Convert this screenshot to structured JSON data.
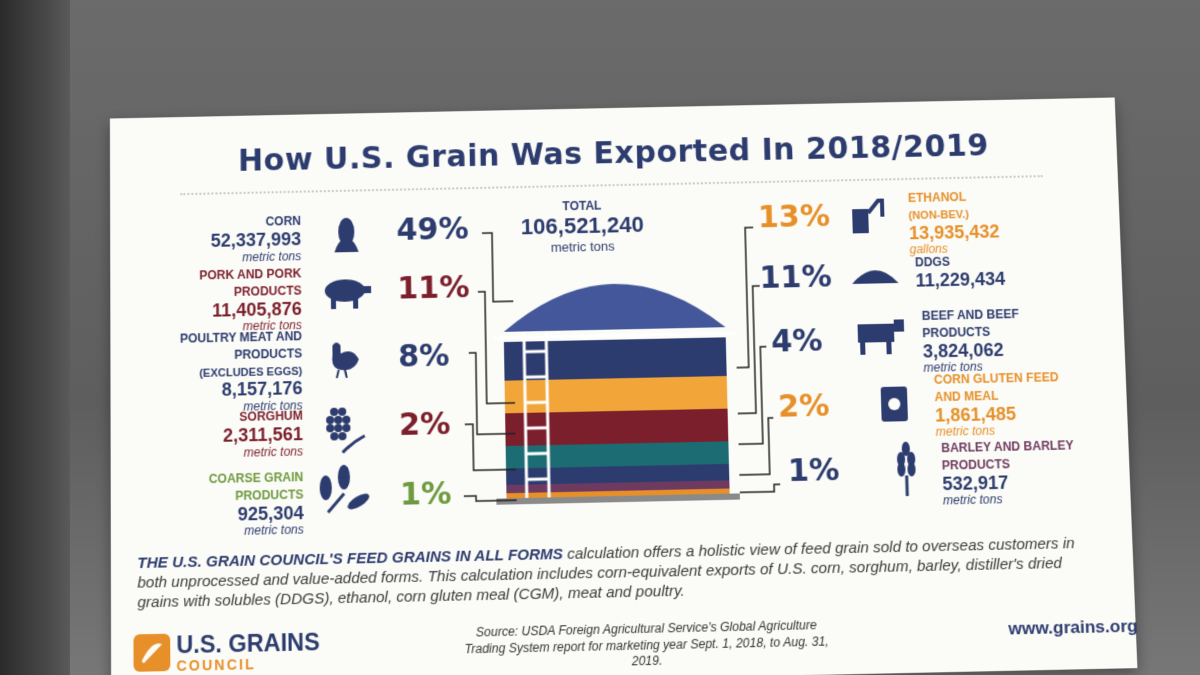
{
  "title": "How U.S. Grain Was Exported In 2018/2019",
  "total": {
    "label": "TOTAL",
    "value": "106,521,240",
    "unit": "metric tons"
  },
  "colors": {
    "navy": "#2d3c6e",
    "maroon": "#7c1f2c",
    "orange": "#e7902a",
    "green": "#6e9a3f",
    "teal": "#1c6d73"
  },
  "left_items": [
    {
      "name": "CORN",
      "value": "52,337,993",
      "unit": "metric tons",
      "pct": "49%",
      "icon": "corn-icon"
    },
    {
      "name": "PORK AND PORK PRODUCTS",
      "value": "11,405,876",
      "unit": "metric tons",
      "pct": "11%",
      "icon": "pig-icon"
    },
    {
      "name": "POULTRY MEAT AND PRODUCTS",
      "note": "(EXCLUDES EGGS)",
      "value": "8,157,176",
      "unit": "metric tons",
      "pct": "8%",
      "icon": "chicken-icon"
    },
    {
      "name": "SORGHUM",
      "value": "2,311,561",
      "unit": "metric tons",
      "pct": "2%",
      "icon": "sorghum-icon"
    },
    {
      "name": "COARSE GRAIN PRODUCTS",
      "value": "925,304",
      "unit": "metric tons",
      "pct": "1%",
      "icon": "coarse-grain-icon"
    }
  ],
  "right_items": [
    {
      "name": "ETHANOL",
      "note": "(NON-BEV.)",
      "value": "13,935,432",
      "unit": "gallons",
      "pct": "13%",
      "icon": "fuel-pump-icon"
    },
    {
      "name": "DDGS",
      "value": "11,229,434",
      "unit": "",
      "pct": "11%",
      "icon": "grain-pile-icon"
    },
    {
      "name": "BEEF AND BEEF PRODUCTS",
      "value": "3,824,062",
      "unit": "metric tons",
      "pct": "4%",
      "icon": "cow-icon"
    },
    {
      "name": "CORN GLUTEN FEED AND MEAL",
      "value": "1,861,485",
      "unit": "metric tons",
      "pct": "2%",
      "icon": "feed-bag-icon"
    },
    {
      "name": "BARLEY AND BARLEY PRODUCTS",
      "value": "532,917",
      "unit": "metric tons",
      "pct": "1%",
      "icon": "barley-icon"
    }
  ],
  "footer": {
    "lead": "THE U.S. GRAIN COUNCIL'S FEED GRAINS IN ALL FORMS",
    "body": " calculation offers a holistic view of feed grain sold to overseas customers in both unprocessed and value-added forms. This calculation includes corn-equivalent exports of U.S. corn, sorghum, barley, distiller's dried grains with solubles (DDGS), ethanol, corn gluten meal (CGM), meat and poultry."
  },
  "logo": {
    "name": "U.S. GRAINS",
    "sub": "COUNCIL"
  },
  "source": "Source: USDA Foreign Agricultural Service's Global Agriculture Trading System report for marketing year Sept. 1, 2018, to Aug. 31, 2019.",
  "url": "www.grains.org"
}
